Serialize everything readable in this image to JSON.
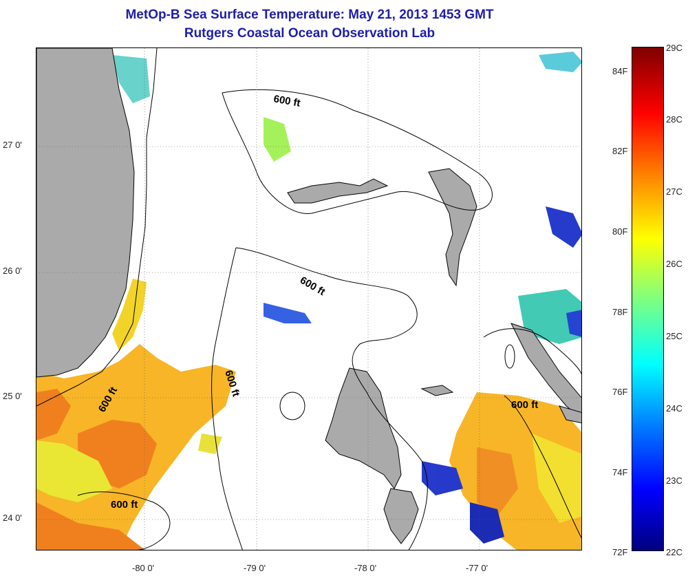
{
  "title": {
    "line1": "MetOp-B Sea Surface Temperature:  May 21, 2013 1453 GMT",
    "line2": "Rutgers Coastal Ocean Observation Lab"
  },
  "map": {
    "latitude_labels": [
      "27 0'",
      "26 0'",
      "25 0'",
      "24 0'"
    ],
    "longitude_labels": [
      "-80 0'",
      "-79 0'",
      "-78 0'",
      "-77 0'"
    ],
    "contour_labels": [
      "600 ft",
      "600 ft",
      "600 ft",
      "600 ft",
      "600 ft",
      "600 ft"
    ],
    "land_color": "#aaaaaa",
    "ocean_nodata_color": "#ffffff"
  },
  "colorbar": {
    "celsius_labels": [
      "29C",
      "28C",
      "27C",
      "26C",
      "25C",
      "24C",
      "23C",
      "22C"
    ],
    "fahrenheit_labels": [
      "84F",
      "82F",
      "80F",
      "78F",
      "76F",
      "74F",
      "72F"
    ],
    "colormap": [
      "#00007f",
      "#0000ff",
      "#007fff",
      "#00ffff",
      "#7fff7f",
      "#ffff00",
      "#ff7f00",
      "#ff0000",
      "#7f0000"
    ]
  }
}
